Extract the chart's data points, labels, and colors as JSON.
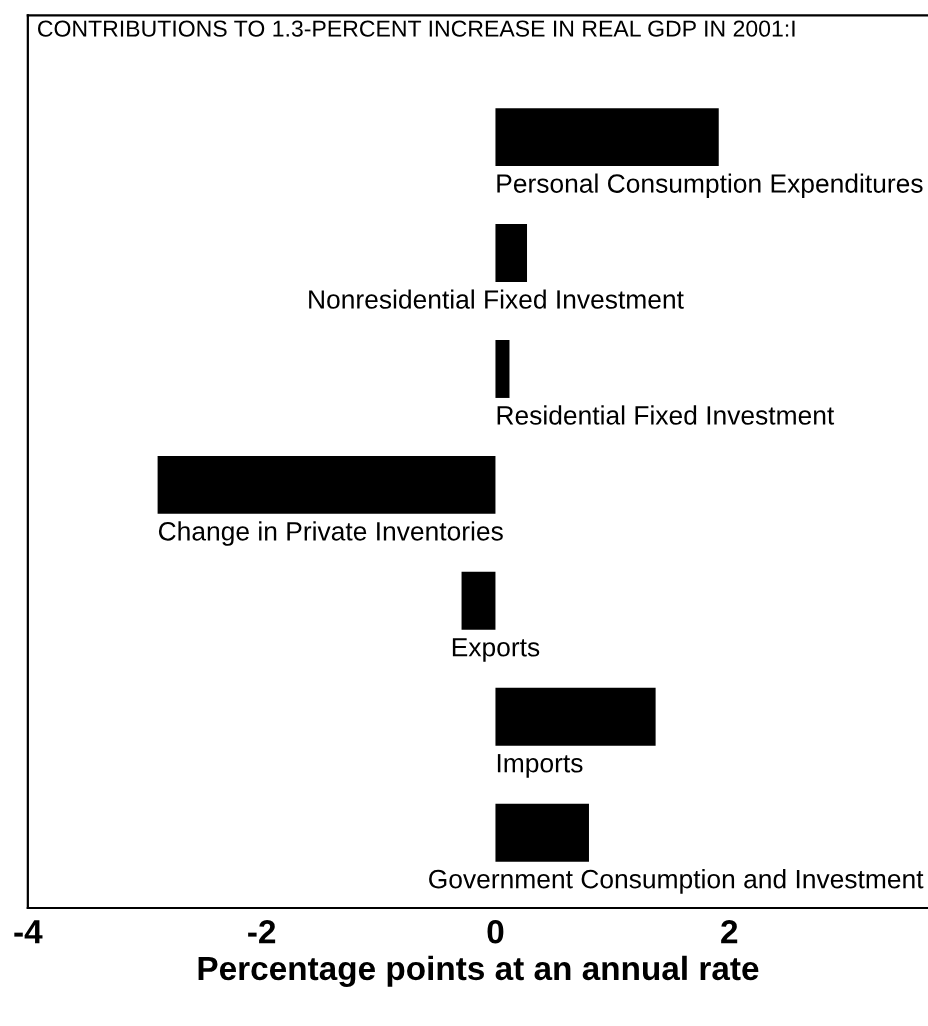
{
  "chart_data": {
    "type": "bar",
    "orientation": "horizontal",
    "title": "CONTRIBUTIONS TO 1.3-PERCENT INCREASE IN REAL GDP IN 2001:I",
    "xlabel": "Percentage points at an annual rate",
    "categories": [
      "Personal Consumption Expenditures",
      "Nonresidential Fixed Investment",
      "Residential Fixed Investment",
      "Change in Private Inventories",
      "Exports",
      "Imports",
      "Government Consumption and Investment"
    ],
    "values": [
      1.91,
      0.27,
      0.12,
      -2.89,
      -0.29,
      1.37,
      0.8
    ],
    "color": "#000000",
    "xlim": [
      -4,
      3.7
    ],
    "xticks": [
      -4,
      -2,
      0,
      2
    ],
    "grid": false,
    "legend": false
  }
}
